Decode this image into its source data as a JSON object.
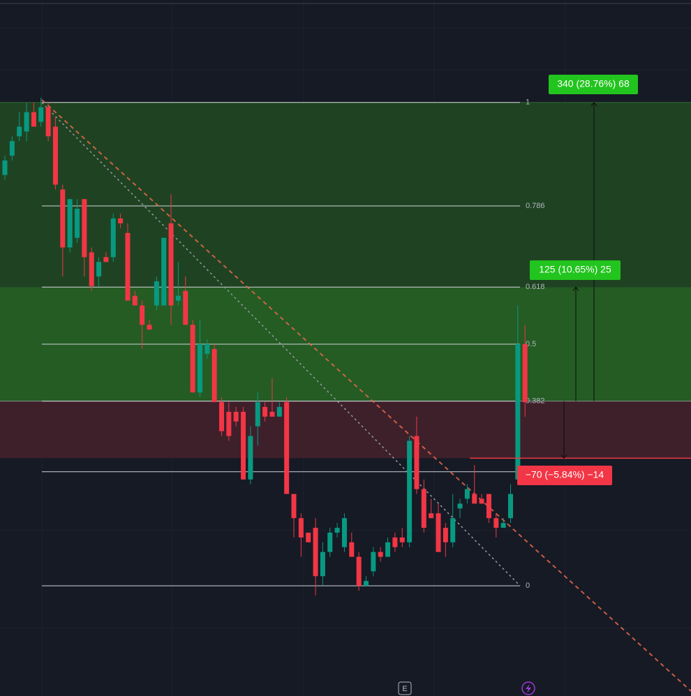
{
  "chart_data": {
    "type": "candlestick",
    "ylim": [
      -0.228,
      1.212
    ],
    "up_color": "#089981",
    "down_color": "#f23645",
    "fib_levels": [
      1,
      0.786,
      0.618,
      0.5,
      0.382,
      0.236,
      0
    ],
    "fib_labels": [
      1,
      0.786,
      0.618,
      0.5,
      0.382,
      null,
      0
    ],
    "stop_level": 0.264,
    "annotations": [
      "340 (28.76%) 68",
      "125 (10.65%) 25",
      "−70 (−5.84%) −14"
    ],
    "marker": "E",
    "candles": [
      [
        0.85,
        0.89,
        0.84,
        0.88
      ],
      [
        0.89,
        0.93,
        0.88,
        0.92
      ],
      [
        0.93,
        0.98,
        0.92,
        0.95
      ],
      [
        0.94,
        1.0,
        0.92,
        0.98
      ],
      [
        0.98,
        1.0,
        0.95,
        0.95
      ],
      [
        0.96,
        1.01,
        0.95,
        0.99
      ],
      [
        0.99,
        1.0,
        0.92,
        0.93
      ],
      [
        0.95,
        0.97,
        0.82,
        0.83
      ],
      [
        0.82,
        0.83,
        0.64,
        0.7
      ],
      [
        0.7,
        0.8,
        0.69,
        0.8
      ],
      [
        0.72,
        0.8,
        0.71,
        0.78
      ],
      [
        0.8,
        0.8,
        0.64,
        0.68
      ],
      [
        0.69,
        0.7,
        0.61,
        0.62
      ],
      [
        0.64,
        0.68,
        0.62,
        0.67
      ],
      [
        0.68,
        0.69,
        0.67,
        0.67
      ],
      [
        0.68,
        0.77,
        0.67,
        0.76
      ],
      [
        0.76,
        0.77,
        0.74,
        0.75
      ],
      [
        0.73,
        0.75,
        0.59,
        0.59
      ],
      [
        0.6,
        0.61,
        0.58,
        0.58
      ],
      [
        0.58,
        0.59,
        0.49,
        0.54
      ],
      [
        0.54,
        0.55,
        0.53,
        0.53
      ],
      [
        0.58,
        0.64,
        0.57,
        0.63
      ],
      [
        0.58,
        0.72,
        0.58,
        0.72
      ],
      [
        0.75,
        0.81,
        0.54,
        0.58
      ],
      [
        0.59,
        0.67,
        0.58,
        0.6
      ],
      [
        0.61,
        0.64,
        0.54,
        0.54
      ],
      [
        0.54,
        0.55,
        0.4,
        0.4
      ],
      [
        0.4,
        0.55,
        0.39,
        0.5
      ],
      [
        0.48,
        0.51,
        0.47,
        0.5
      ],
      [
        0.49,
        0.5,
        0.38,
        0.38
      ],
      [
        0.38,
        0.39,
        0.31,
        0.32
      ],
      [
        0.36,
        0.38,
        0.3,
        0.31
      ],
      [
        0.36,
        0.37,
        0.33,
        0.34
      ],
      [
        0.36,
        0.37,
        0.22,
        0.22
      ],
      [
        0.22,
        0.33,
        0.21,
        0.31
      ],
      [
        0.33,
        0.4,
        0.29,
        0.38
      ],
      [
        0.37,
        0.38,
        0.34,
        0.35
      ],
      [
        0.36,
        0.43,
        0.35,
        0.35
      ],
      [
        0.35,
        0.38,
        0.35,
        0.37
      ],
      [
        0.38,
        0.39,
        0.19,
        0.19
      ],
      [
        0.19,
        0.19,
        0.1,
        0.14
      ],
      [
        0.14,
        0.15,
        0.06,
        0.1
      ],
      [
        0.11,
        0.11,
        0.09,
        0.09
      ],
      [
        0.12,
        0.14,
        -0.02,
        0.02
      ],
      [
        0.02,
        0.09,
        0.0,
        0.07
      ],
      [
        0.07,
        0.12,
        0.06,
        0.11
      ],
      [
        0.11,
        0.13,
        0.1,
        0.12
      ],
      [
        0.08,
        0.15,
        0.07,
        0.14
      ],
      [
        0.09,
        0.11,
        0.06,
        0.06
      ],
      [
        0.06,
        0.07,
        -0.01,
        0.0
      ],
      [
        0.0,
        0.02,
        0.0,
        0.01
      ],
      [
        0.03,
        0.08,
        0.02,
        0.07
      ],
      [
        0.07,
        0.08,
        0.05,
        0.06
      ],
      [
        0.06,
        0.1,
        0.06,
        0.09
      ],
      [
        0.1,
        0.11,
        0.07,
        0.08
      ],
      [
        0.1,
        0.12,
        0.08,
        0.09
      ],
      [
        0.09,
        0.31,
        0.08,
        0.3
      ],
      [
        0.31,
        0.35,
        0.19,
        0.2
      ],
      [
        0.2,
        0.22,
        0.11,
        0.12
      ],
      [
        0.15,
        0.18,
        0.14,
        0.14
      ],
      [
        0.15,
        0.17,
        0.07,
        0.07
      ],
      [
        0.12,
        0.13,
        0.06,
        0.09
      ],
      [
        0.09,
        0.19,
        0.08,
        0.14
      ],
      [
        0.16,
        0.18,
        0.14,
        0.17
      ],
      [
        0.18,
        0.21,
        0.17,
        0.2
      ],
      [
        0.19,
        0.25,
        0.17,
        0.17
      ],
      [
        0.18,
        0.19,
        0.17,
        0.17
      ],
      [
        0.19,
        0.19,
        0.13,
        0.14
      ],
      [
        0.14,
        0.15,
        0.1,
        0.12
      ],
      [
        0.12,
        0.14,
        0.12,
        0.13
      ],
      [
        0.14,
        0.21,
        0.13,
        0.19
      ],
      [
        0.22,
        0.58,
        0.21,
        0.5
      ],
      [
        0.5,
        0.54,
        0.35,
        0.38
      ]
    ]
  }
}
